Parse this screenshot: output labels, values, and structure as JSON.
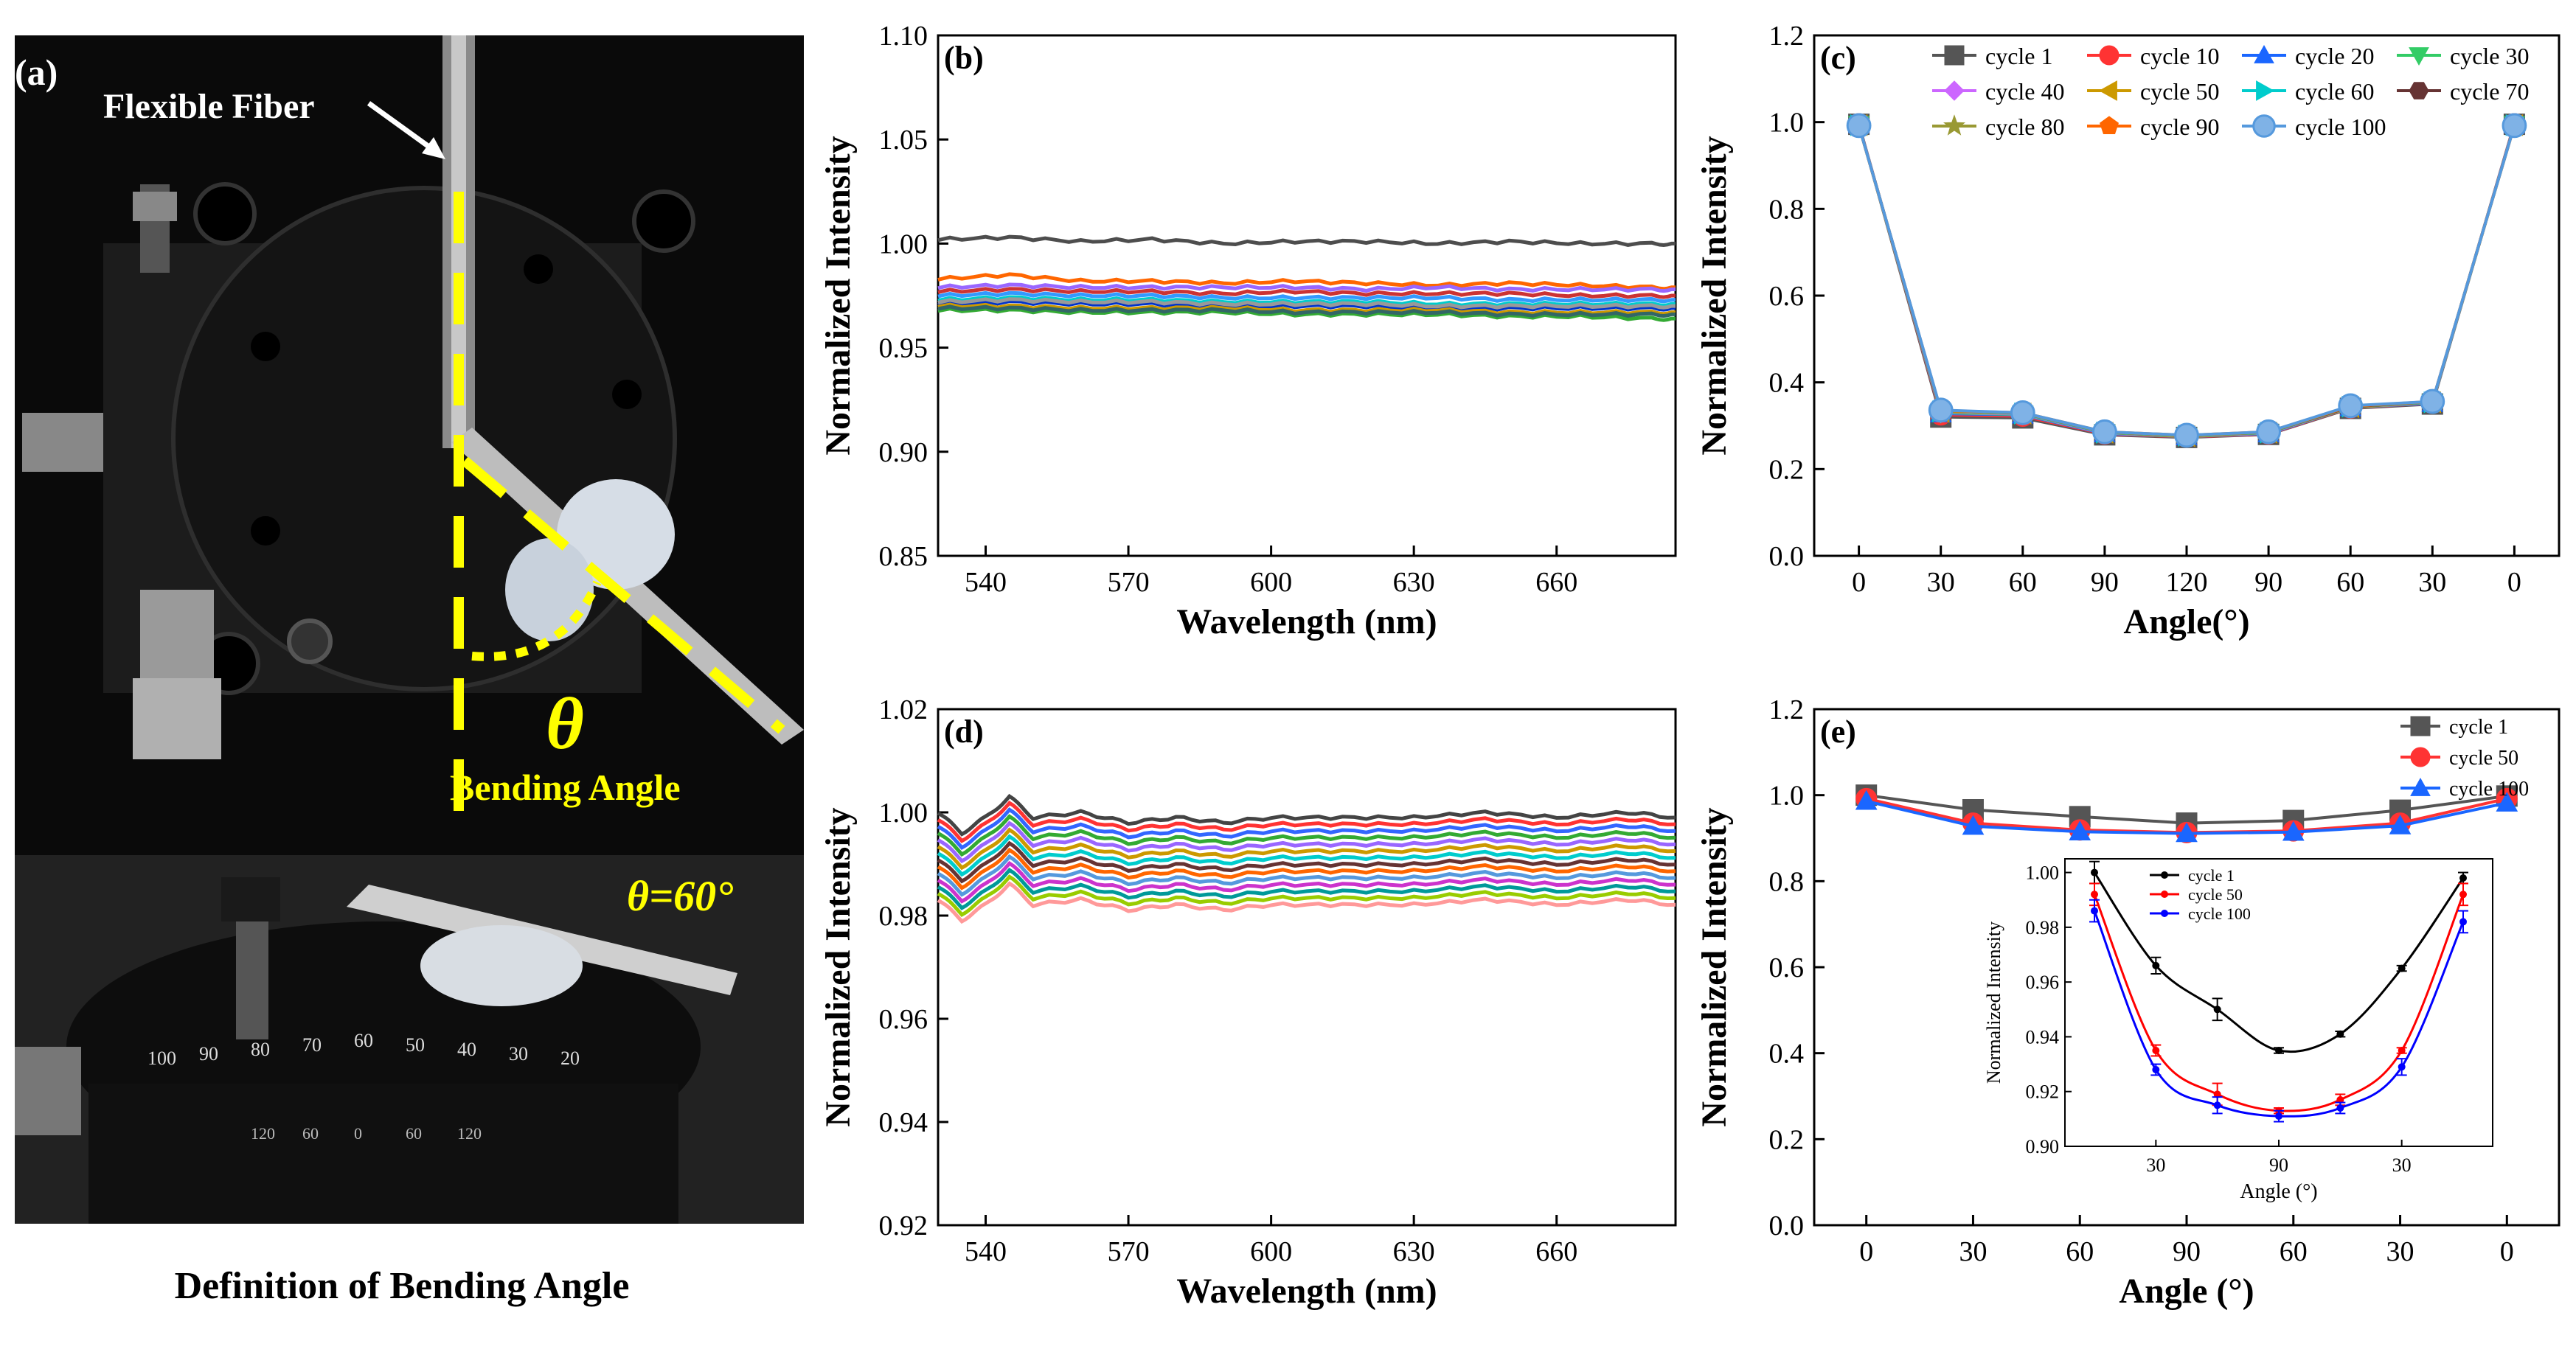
{
  "photo": {
    "panel_label": "(a)",
    "fiber_label": "Flexible Fiber",
    "theta_symbol": "θ",
    "bending_label": "Bending Angle",
    "theta_value": "θ=60°",
    "caption": "Definition of Bending Angle",
    "dial_numbers": [
      "100",
      "90",
      "80",
      "70",
      "60",
      "50",
      "40",
      "30",
      "20"
    ],
    "dial_lower_numbers": [
      "120",
      "60",
      "0",
      "60",
      "120"
    ],
    "colors": {
      "background": "#000000",
      "accent": "#ffff00",
      "text": "#ffffff"
    }
  },
  "chart_data": [
    {
      "id": "b",
      "type": "line",
      "panel_label": "(b)",
      "xlabel": "Wavelength (nm)",
      "ylabel": "Normalized Intensity",
      "xlim": [
        530,
        685
      ],
      "ylim": [
        0.85,
        1.1
      ],
      "xticks": [
        540,
        570,
        600,
        630,
        660
      ],
      "yticks": [
        0.85,
        0.9,
        0.95,
        1.0,
        1.05,
        1.1
      ],
      "ytick_labels": [
        "0.85",
        "0.90",
        "0.95",
        "1.00",
        "1.05",
        "1.10"
      ],
      "x": [
        530,
        545,
        560,
        575,
        590,
        605,
        620,
        635,
        650,
        665,
        680,
        685
      ],
      "series": [
        {
          "name": "cycle 1",
          "color": "#4d4d4d",
          "values": [
            1.002,
            1.003,
            1.001,
            1.002,
            1.0,
            1.001,
            1.001,
            1.0,
            1.001,
            1.0,
            1.0,
            1.0
          ]
        },
        {
          "name": "cycle 10",
          "color": "#ff6600",
          "values": [
            0.983,
            0.985,
            0.982,
            0.982,
            0.981,
            0.982,
            0.981,
            0.98,
            0.981,
            0.98,
            0.979,
            0.979
          ]
        },
        {
          "name": "cycle 20",
          "color": "#9966ff",
          "values": [
            0.979,
            0.98,
            0.979,
            0.979,
            0.979,
            0.979,
            0.978,
            0.979,
            0.978,
            0.978,
            0.978,
            0.978
          ]
        },
        {
          "name": "cycle 30",
          "color": "#cc3333",
          "values": [
            0.977,
            0.978,
            0.977,
            0.977,
            0.976,
            0.977,
            0.976,
            0.976,
            0.976,
            0.975,
            0.975,
            0.975
          ]
        },
        {
          "name": "cycle 40",
          "color": "#3399ff",
          "values": [
            0.975,
            0.976,
            0.975,
            0.975,
            0.974,
            0.974,
            0.974,
            0.974,
            0.973,
            0.973,
            0.973,
            0.973
          ]
        },
        {
          "name": "cycle 50",
          "color": "#00cccc",
          "values": [
            0.973,
            0.974,
            0.973,
            0.973,
            0.972,
            0.972,
            0.972,
            0.971,
            0.971,
            0.971,
            0.971,
            0.971
          ]
        },
        {
          "name": "cycle 60",
          "color": "#0033cc",
          "values": [
            0.971,
            0.972,
            0.971,
            0.971,
            0.97,
            0.97,
            0.97,
            0.969,
            0.969,
            0.969,
            0.969,
            0.969
          ]
        },
        {
          "name": "cycle 70",
          "color": "#cc9900",
          "values": [
            0.97,
            0.97,
            0.969,
            0.969,
            0.969,
            0.968,
            0.968,
            0.968,
            0.967,
            0.967,
            0.967,
            0.967
          ]
        },
        {
          "name": "cycle 80",
          "color": "#33aa33",
          "values": [
            0.968,
            0.968,
            0.967,
            0.967,
            0.967,
            0.966,
            0.966,
            0.966,
            0.965,
            0.965,
            0.964,
            0.964
          ]
        },
        {
          "name": "cycle 90",
          "color": "#336666",
          "values": [
            0.969,
            0.969,
            0.968,
            0.968,
            0.968,
            0.967,
            0.967,
            0.967,
            0.966,
            0.966,
            0.966,
            0.966
          ]
        },
        {
          "name": "cycle 100",
          "color": "#999999",
          "values": [
            0.972,
            0.973,
            0.972,
            0.972,
            0.971,
            0.971,
            0.971,
            0.97,
            0.97,
            0.97,
            0.97,
            0.97
          ]
        }
      ]
    },
    {
      "id": "c",
      "type": "line",
      "panel_label": "(c)",
      "xlabel": "Angle(°)",
      "ylabel": "Normalized Intensity",
      "categories": [
        "0",
        "30",
        "60",
        "90",
        "120",
        "90",
        "60",
        "30",
        "0"
      ],
      "ylim": [
        0.0,
        1.2
      ],
      "yticks": [
        0.0,
        0.2,
        0.4,
        0.6,
        0.8,
        1.0,
        1.2
      ],
      "ytick_labels": [
        "0.0",
        "0.2",
        "0.4",
        "0.6",
        "0.8",
        "1.0",
        "1.2"
      ],
      "series": [
        {
          "name": "cycle 1",
          "color": "#555555",
          "marker": "square",
          "values": [
            0.995,
            0.32,
            0.318,
            0.279,
            0.273,
            0.28,
            0.34,
            0.35,
            0.995
          ]
        },
        {
          "name": "cycle 10",
          "color": "#ff3333",
          "marker": "circle",
          "values": [
            0.996,
            0.325,
            0.322,
            0.281,
            0.274,
            0.281,
            0.341,
            0.352,
            0.996
          ]
        },
        {
          "name": "cycle 20",
          "color": "#1a66ff",
          "marker": "triangle-up",
          "values": [
            0.995,
            0.328,
            0.325,
            0.282,
            0.275,
            0.282,
            0.342,
            0.352,
            0.995
          ]
        },
        {
          "name": "cycle 30",
          "color": "#33cc66",
          "marker": "triangle-down",
          "values": [
            0.994,
            0.33,
            0.326,
            0.283,
            0.275,
            0.283,
            0.342,
            0.353,
            0.994
          ]
        },
        {
          "name": "cycle 40",
          "color": "#cc66ff",
          "marker": "diamond",
          "values": [
            0.994,
            0.331,
            0.327,
            0.283,
            0.276,
            0.283,
            0.343,
            0.353,
            0.994
          ]
        },
        {
          "name": "cycle 50",
          "color": "#cc9900",
          "marker": "triangle-left",
          "values": [
            0.993,
            0.332,
            0.328,
            0.284,
            0.276,
            0.284,
            0.343,
            0.354,
            0.993
          ]
        },
        {
          "name": "cycle 60",
          "color": "#00cccc",
          "marker": "triangle-right",
          "values": [
            0.993,
            0.333,
            0.328,
            0.284,
            0.277,
            0.284,
            0.344,
            0.354,
            0.993
          ]
        },
        {
          "name": "cycle 70",
          "color": "#663333",
          "marker": "hexagon",
          "values": [
            0.993,
            0.334,
            0.329,
            0.285,
            0.277,
            0.285,
            0.344,
            0.355,
            0.993
          ]
        },
        {
          "name": "cycle 80",
          "color": "#999933",
          "marker": "star",
          "values": [
            0.992,
            0.334,
            0.329,
            0.285,
            0.277,
            0.285,
            0.345,
            0.355,
            0.992
          ]
        },
        {
          "name": "cycle 90",
          "color": "#ff6600",
          "marker": "pentagon",
          "values": [
            0.992,
            0.335,
            0.33,
            0.286,
            0.278,
            0.286,
            0.345,
            0.356,
            0.992
          ]
        },
        {
          "name": "cycle 100",
          "color": "#5599dd",
          "marker": "circle-large",
          "values": [
            0.992,
            0.336,
            0.33,
            0.286,
            0.278,
            0.286,
            0.346,
            0.356,
            0.992
          ]
        }
      ]
    },
    {
      "id": "d",
      "type": "line",
      "panel_label": "(d)",
      "xlabel": "Wavelength (nm)",
      "ylabel": "Normalized Intensity",
      "xlim": [
        530,
        685
      ],
      "ylim": [
        0.92,
        1.02
      ],
      "xticks": [
        540,
        570,
        600,
        630,
        660
      ],
      "yticks": [
        0.92,
        0.94,
        0.96,
        0.98,
        1.0,
        1.02
      ],
      "ytick_labels": [
        "0.92",
        "0.94",
        "0.96",
        "0.98",
        "1.00",
        "1.02"
      ],
      "x": [
        530,
        535,
        540,
        545,
        550,
        560,
        570,
        580,
        590,
        600,
        615,
        630,
        645,
        660,
        675,
        685
      ],
      "band": {
        "top_offset": 0.0,
        "count": 14,
        "spacing": 0.0013
      },
      "series_base": [
        1.0,
        0.996,
        0.999,
        1.003,
        0.999,
        1.0,
        0.998,
        0.999,
        0.998,
        0.999,
        0.999,
        0.999,
        1.0,
        0.999,
        1.0,
        0.999
      ],
      "series_colors": [
        "#444444",
        "#ff3333",
        "#3366ff",
        "#33aa33",
        "#9966ff",
        "#cc9900",
        "#00cccc",
        "#663333",
        "#ff6600",
        "#5599dd",
        "#cc33cc",
        "#009999",
        "#99cc00",
        "#ff9999"
      ]
    },
    {
      "id": "e",
      "type": "line",
      "panel_label": "(e)",
      "xlabel": "Angle (°)",
      "ylabel": "Normalized Intensity",
      "categories": [
        "0",
        "30",
        "60",
        "90",
        "60",
        "30",
        "0"
      ],
      "ylim": [
        0.0,
        1.2
      ],
      "yticks": [
        0.0,
        0.2,
        0.4,
        0.6,
        0.8,
        1.0,
        1.2
      ],
      "ytick_labels": [
        "0.0",
        "0.2",
        "0.4",
        "0.6",
        "0.8",
        "1.0",
        "1.2"
      ],
      "series": [
        {
          "name": "cycle 1",
          "color": "#555555",
          "marker": "square",
          "values": [
            1.0,
            0.966,
            0.95,
            0.935,
            0.941,
            0.965,
            0.998
          ]
        },
        {
          "name": "cycle 50",
          "color": "#ff3333",
          "marker": "circle",
          "values": [
            0.992,
            0.935,
            0.919,
            0.913,
            0.917,
            0.935,
            0.992
          ]
        },
        {
          "name": "cycle 100",
          "color": "#1a66ff",
          "marker": "triangle-up",
          "values": [
            0.986,
            0.928,
            0.915,
            0.911,
            0.914,
            0.929,
            0.982
          ]
        }
      ],
      "inset": {
        "xlabel": "Angle (°)",
        "ylabel": "Normalized Intensity",
        "xtick_labels": [
          "30",
          "90",
          "30"
        ],
        "ylim": [
          0.9,
          1.005
        ],
        "yticks": [
          0.9,
          0.92,
          0.94,
          0.96,
          0.98,
          1.0
        ],
        "ytick_labels": [
          "0.90",
          "0.92",
          "0.94",
          "0.96",
          "0.98",
          "1.00"
        ],
        "series": [
          {
            "name": "cycle 1",
            "color": "#000000",
            "values": [
              1.0,
              0.966,
              0.95,
              0.935,
              0.941,
              0.965,
              0.998
            ],
            "errors": [
              0.004,
              0.003,
              0.004,
              0.001,
              0.001,
              0.001,
              0.002
            ]
          },
          {
            "name": "cycle 50",
            "color": "#ff0000",
            "values": [
              0.992,
              0.935,
              0.919,
              0.913,
              0.917,
              0.935,
              0.992
            ],
            "errors": [
              0.004,
              0.002,
              0.004,
              0.001,
              0.002,
              0.001,
              0.004
            ]
          },
          {
            "name": "cycle 100",
            "color": "#0000ff",
            "values": [
              0.986,
              0.928,
              0.915,
              0.911,
              0.914,
              0.929,
              0.982
            ],
            "errors": [
              0.004,
              0.002,
              0.003,
              0.002,
              0.002,
              0.003,
              0.004
            ]
          }
        ]
      }
    }
  ]
}
